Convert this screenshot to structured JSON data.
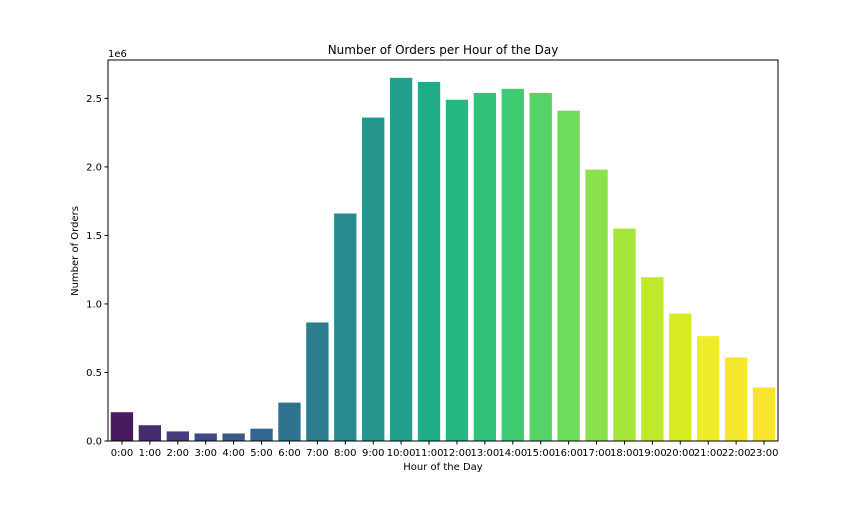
{
  "chart_data": {
    "type": "bar",
    "title": "Number of Orders per Hour of the Day",
    "xlabel": "Hour of the Day",
    "ylabel": "Number of Orders",
    "y_offset_label": "1e6",
    "categories": [
      "0:00",
      "1:00",
      "2:00",
      "3:00",
      "4:00",
      "5:00",
      "6:00",
      "7:00",
      "8:00",
      "9:00",
      "10:00",
      "11:00",
      "12:00",
      "13:00",
      "14:00",
      "15:00",
      "16:00",
      "17:00",
      "18:00",
      "19:00",
      "20:00",
      "21:00",
      "22:00",
      "23:00"
    ],
    "values": [
      210000,
      115000,
      70000,
      55000,
      55000,
      90000,
      280000,
      865000,
      1660000,
      2360000,
      2650000,
      2620000,
      2490000,
      2540000,
      2570000,
      2540000,
      2410000,
      1980000,
      1550000,
      1195000,
      930000,
      765000,
      610000,
      390000
    ],
    "y_ticks": [
      0,
      500000,
      1000000,
      1500000,
      2000000,
      2500000
    ],
    "y_tick_labels": [
      "0.0",
      "0.5",
      "1.0",
      "1.5",
      "2.0",
      "2.5"
    ],
    "ylim": [
      0,
      2780000
    ],
    "grid": false,
    "palette": "viridis",
    "bar_colors": [
      "#481a60",
      "#462c6f",
      "#433c7c",
      "#3e4a86",
      "#39598a",
      "#33668e",
      "#2f728f",
      "#2c7e8e",
      "#28898e",
      "#25948d",
      "#22a08b",
      "#21ab87",
      "#26b682",
      "#31c17b",
      "#40cb72",
      "#56d367",
      "#6edb5b",
      "#89e14c",
      "#a4e53a",
      "#bfe92b",
      "#d7eb23",
      "#edec27",
      "#f4e82c",
      "#f8e42f"
    ]
  }
}
